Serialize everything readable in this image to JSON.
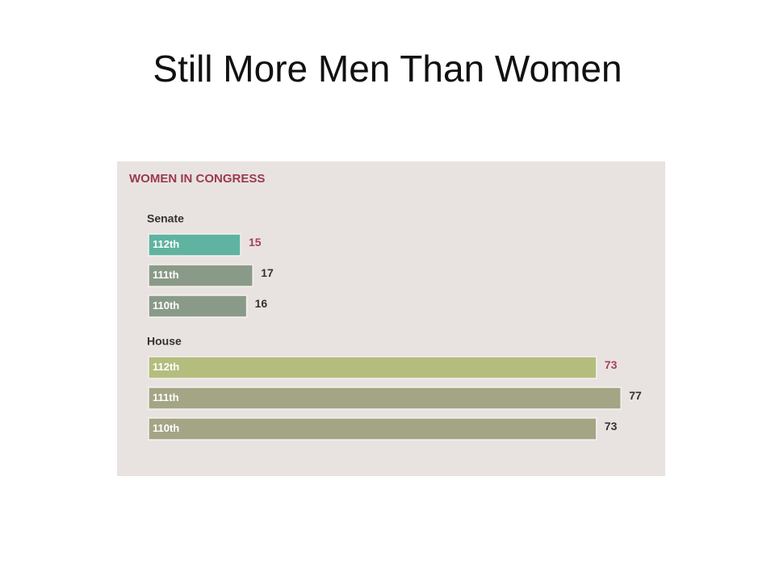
{
  "slide_title": "Still More Men Than Women",
  "chart_data": {
    "type": "bar",
    "title": "WOMEN IN CONGRESS",
    "groups": [
      {
        "name": "Senate",
        "categories": [
          "112th",
          "111th",
          "110th"
        ],
        "values": [
          15,
          17,
          16
        ],
        "colors": [
          "#5fb3a0",
          "#8a9a88",
          "#8a9a88"
        ]
      },
      {
        "name": "House",
        "categories": [
          "112th",
          "111th",
          "110th"
        ],
        "values": [
          73,
          77,
          73
        ],
        "colors": [
          "#b4bd7e",
          "#a3a585",
          "#a3a585"
        ]
      }
    ],
    "value_label_colors": [
      "#a8405a",
      "#333333",
      "#333333"
    ]
  }
}
